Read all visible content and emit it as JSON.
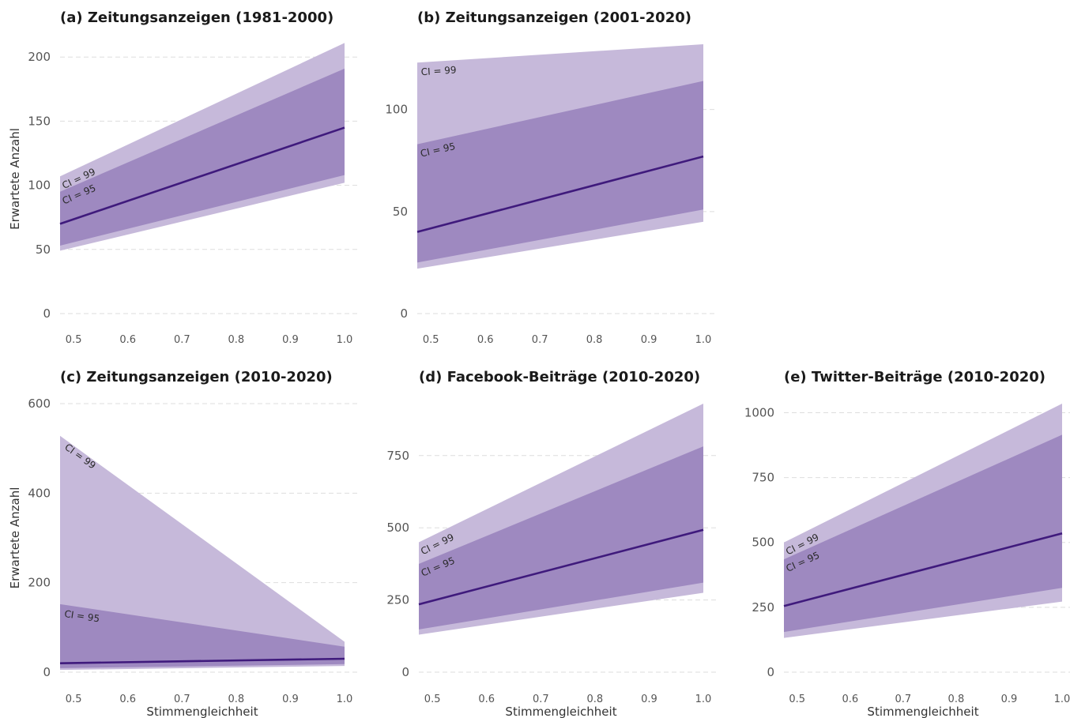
{
  "chart_data": [
    {
      "type": "line",
      "title": "(a) Zeitungsanzeigen (1981-2000)",
      "xlabel": "",
      "ylabel": "Erwartete Anzahl",
      "xlim": [
        0.475,
        1.0
      ],
      "ylim": [
        0,
        210
      ],
      "xticks": [
        "0.5",
        "0.6",
        "0.7",
        "0.8",
        "0.9",
        "1.0"
      ],
      "yticks": [
        "0",
        "50",
        "100",
        "150",
        "200"
      ],
      "x": [
        0.475,
        1.0
      ],
      "fit": [
        70,
        145
      ],
      "ci95": {
        "label": "CI = 95",
        "lower": [
          53,
          108
        ],
        "upper": [
          95,
          191
        ]
      },
      "ci99": {
        "label": "CI = 99",
        "lower": [
          49,
          102
        ],
        "upper": [
          107,
          211
        ]
      }
    },
    {
      "type": "line",
      "title": "(b) Zeitungsanzeigen (2001-2020)",
      "xlabel": "",
      "ylabel": "",
      "xlim": [
        0.475,
        1.0
      ],
      "ylim": [
        0,
        132
      ],
      "xticks": [
        "0.5",
        "0.6",
        "0.7",
        "0.8",
        "0.9",
        "1.0"
      ],
      "yticks": [
        "0",
        "50",
        "100"
      ],
      "x": [
        0.475,
        1.0
      ],
      "fit": [
        40,
        77
      ],
      "ci95": {
        "label": "CI = 95",
        "lower": [
          25,
          51
        ],
        "upper": [
          83,
          114
        ]
      },
      "ci99": {
        "label": "CI = 99",
        "lower": [
          22,
          45
        ],
        "upper": [
          123,
          132
        ]
      }
    },
    {
      "type": "line",
      "title": "(c) Zeitungsanzeigen (2010-2020)",
      "xlabel": "Stimmengleichheit",
      "ylabel": "Erwartete Anzahl",
      "xlim": [
        0.475,
        1.0
      ],
      "ylim": [
        0,
        600
      ],
      "xticks": [
        "0.5",
        "0.6",
        "0.7",
        "0.8",
        "0.9",
        "1.0"
      ],
      "yticks": [
        "0",
        "200",
        "400",
        "600"
      ],
      "x": [
        0.475,
        1.0
      ],
      "fit": [
        20,
        30
      ],
      "ci95": {
        "label": "CI = 95",
        "lower": [
          9,
          18
        ],
        "upper": [
          152,
          57
        ]
      },
      "ci99": {
        "label": "CI = 99",
        "lower": [
          5,
          14
        ],
        "upper": [
          528,
          68
        ]
      }
    },
    {
      "type": "line",
      "title": "(d) Facebook-Beiträge (2010-2020)",
      "xlabel": "Stimmengleichheit",
      "ylabel": "",
      "xlim": [
        0.475,
        1.0
      ],
      "ylim": [
        0,
        930
      ],
      "xticks": [
        "0.5",
        "0.6",
        "0.7",
        "0.8",
        "0.9",
        "1.0"
      ],
      "yticks": [
        "0",
        "250",
        "500",
        "750"
      ],
      "x": [
        0.475,
        1.0
      ],
      "fit": [
        235,
        493
      ],
      "ci95": {
        "label": "CI = 95",
        "lower": [
          148,
          310
        ],
        "upper": [
          375,
          782
        ]
      },
      "ci99": {
        "label": "CI = 99",
        "lower": [
          130,
          275
        ],
        "upper": [
          450,
          930
        ]
      }
    },
    {
      "type": "line",
      "title": "(e) Twitter-Beiträge (2010-2020)",
      "xlabel": "Stimmengleichheit",
      "ylabel": "",
      "xlim": [
        0.475,
        1.0
      ],
      "ylim": [
        0,
        1035
      ],
      "xticks": [
        "0.5",
        "0.6",
        "0.7",
        "0.8",
        "0.9",
        "1.0"
      ],
      "yticks": [
        "0",
        "250",
        "500",
        "750",
        "1000"
      ],
      "x": [
        0.475,
        1.0
      ],
      "fit": [
        255,
        535
      ],
      "ci95": {
        "label": "CI = 95",
        "lower": [
          155,
          325
        ],
        "upper": [
          435,
          915
        ]
      },
      "ci99": {
        "label": "CI = 99",
        "lower": [
          132,
          272
        ],
        "upper": [
          500,
          1035
        ]
      }
    }
  ],
  "colors": {
    "ci99": "#c6b9da",
    "ci95": "#9e89c0",
    "fit": "#3f1a7c",
    "grid": "#dddddd",
    "text": "#555555"
  }
}
